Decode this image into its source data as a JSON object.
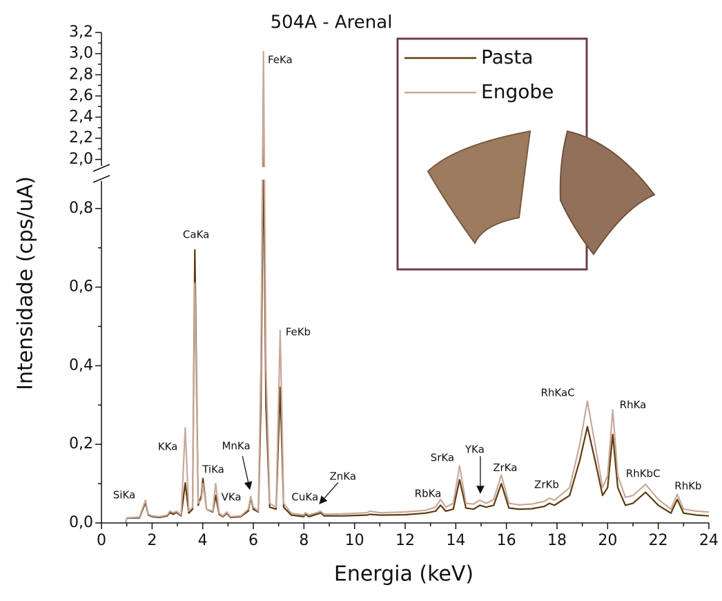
{
  "chart_data": {
    "type": "line",
    "title": "504A - Arenal",
    "x_label": "Energia (keV)",
    "y_label": "Intensidade (cps/uA)",
    "x": [
      0.95,
      1.0,
      1.5,
      1.74,
      1.85,
      2.0,
      2.3,
      2.6,
      2.7,
      2.85,
      2.95,
      3.15,
      3.31,
      3.45,
      3.6,
      3.69,
      3.82,
      3.95,
      4.01,
      4.15,
      4.4,
      4.51,
      4.65,
      4.8,
      4.95,
      5.1,
      5.5,
      5.8,
      5.9,
      6.0,
      6.2,
      6.3,
      6.4,
      6.5,
      6.65,
      6.9,
      7.06,
      7.2,
      7.5,
      8.0,
      8.05,
      8.2,
      8.6,
      8.65,
      8.8,
      9.5,
      10.5,
      10.6,
      11.0,
      12.0,
      12.8,
      13.2,
      13.4,
      13.6,
      13.9,
      14.15,
      14.4,
      14.7,
      14.95,
      15.2,
      15.5,
      15.8,
      16.1,
      16.5,
      17.0,
      17.5,
      17.7,
      17.9,
      18.5,
      18.9,
      19.2,
      19.5,
      19.8,
      20.0,
      20.2,
      20.4,
      20.7,
      21.0,
      21.5,
      22.0,
      22.5,
      22.75,
      23.0,
      23.5,
      24.0
    ],
    "series": [
      {
        "name": "Pasta",
        "color": "#5c3a0c",
        "values": [
          0.0,
          0.012,
          0.013,
          0.052,
          0.02,
          0.016,
          0.014,
          0.018,
          0.026,
          0.022,
          0.027,
          0.018,
          0.102,
          0.025,
          0.035,
          0.695,
          0.045,
          0.07,
          0.113,
          0.035,
          0.028,
          0.07,
          0.022,
          0.016,
          0.025,
          0.014,
          0.016,
          0.03,
          0.065,
          0.035,
          0.028,
          0.3,
          2.12,
          0.3,
          0.04,
          0.035,
          0.345,
          0.04,
          0.02,
          0.016,
          0.022,
          0.016,
          0.024,
          0.026,
          0.018,
          0.018,
          0.02,
          0.022,
          0.02,
          0.021,
          0.025,
          0.03,
          0.045,
          0.03,
          0.035,
          0.11,
          0.038,
          0.035,
          0.045,
          0.04,
          0.045,
          0.1,
          0.038,
          0.035,
          0.036,
          0.042,
          0.05,
          0.045,
          0.07,
          0.16,
          0.245,
          0.16,
          0.07,
          0.09,
          0.225,
          0.09,
          0.045,
          0.05,
          0.078,
          0.045,
          0.025,
          0.06,
          0.025,
          0.02,
          0.018
        ]
      },
      {
        "name": "Engobe",
        "color": "#c9a898",
        "values": [
          0.0,
          0.013,
          0.015,
          0.058,
          0.022,
          0.018,
          0.016,
          0.02,
          0.03,
          0.026,
          0.03,
          0.02,
          0.242,
          0.03,
          0.04,
          0.61,
          0.05,
          0.06,
          0.1,
          0.035,
          0.03,
          0.1,
          0.025,
          0.018,
          0.028,
          0.016,
          0.018,
          0.035,
          0.068,
          0.04,
          0.03,
          0.4,
          3.02,
          0.4,
          0.05,
          0.04,
          0.49,
          0.05,
          0.025,
          0.02,
          0.026,
          0.02,
          0.028,
          0.03,
          0.022,
          0.023,
          0.026,
          0.03,
          0.026,
          0.028,
          0.032,
          0.04,
          0.06,
          0.04,
          0.05,
          0.145,
          0.05,
          0.048,
          0.058,
          0.05,
          0.06,
          0.122,
          0.05,
          0.046,
          0.048,
          0.055,
          0.063,
          0.058,
          0.09,
          0.2,
          0.31,
          0.2,
          0.09,
          0.12,
          0.288,
          0.12,
          0.065,
          0.07,
          0.098,
          0.06,
          0.035,
          0.073,
          0.035,
          0.03,
          0.028
        ]
      }
    ],
    "xlim": [
      0,
      24
    ],
    "xticks": [
      0,
      2,
      4,
      6,
      8,
      10,
      12,
      14,
      16,
      18,
      20,
      22,
      24
    ],
    "ylim": [
      0,
      3.2
    ],
    "ybreak": [
      0.87,
      1.94
    ],
    "yticks": [
      {
        "value": 0,
        "label": "0,0"
      },
      {
        "value": 0.2,
        "label": "0,2"
      },
      {
        "value": 0.4,
        "label": "0,4"
      },
      {
        "value": 0.6,
        "label": "0,6"
      },
      {
        "value": 0.8,
        "label": "0,8"
      },
      {
        "value": 2.0,
        "label": "2,0"
      },
      {
        "value": 2.2,
        "label": "2,2"
      },
      {
        "value": 2.4,
        "label": "2,4"
      },
      {
        "value": 2.6,
        "label": "2,6"
      },
      {
        "value": 2.8,
        "label": "2,8"
      },
      {
        "value": 3.0,
        "label": "3,0"
      },
      {
        "value": 3.2,
        "label": "3,2"
      }
    ],
    "legend": "upper right",
    "annotations": [
      {
        "text": "SiKa",
        "x": 0.9,
        "y": 0.07
      },
      {
        "text": "KKa",
        "x": 2.62,
        "y": 0.193
      },
      {
        "text": "CaKa",
        "x": 3.74,
        "y": 0.733
      },
      {
        "text": "TiKa",
        "x": 4.42,
        "y": 0.135
      },
      {
        "text": "VKa",
        "x": 5.13,
        "y": 0.065
      },
      {
        "text": "MnKa",
        "x": 5.32,
        "y": 0.195,
        "arrow_from": [
          5.57,
          0.17
        ],
        "arrow_to": [
          5.86,
          0.086
        ]
      },
      {
        "text": "FeKa",
        "x": 7.06,
        "y": 2.94
      },
      {
        "text": "FeKb",
        "x": 7.77,
        "y": 0.485
      },
      {
        "text": "CuKa",
        "x": 8.04,
        "y": 0.065
      },
      {
        "text": "ZnKa",
        "x": 9.54,
        "y": 0.118,
        "arrow_from": [
          9.35,
          0.103
        ],
        "arrow_to": [
          8.62,
          0.049
        ]
      },
      {
        "text": "RbKa",
        "x": 12.9,
        "y": 0.074
      },
      {
        "text": "SrKa",
        "x": 13.47,
        "y": 0.165
      },
      {
        "text": "YKa",
        "x": 14.75,
        "y": 0.186,
        "arrow_from": [
          14.97,
          0.17
        ],
        "arrow_to": [
          14.97,
          0.076
        ]
      },
      {
        "text": "ZrKa",
        "x": 15.95,
        "y": 0.14
      },
      {
        "text": "ZrKb",
        "x": 17.59,
        "y": 0.097
      },
      {
        "text": "RhKaC",
        "x": 18.03,
        "y": 0.33
      },
      {
        "text": "RhKa",
        "x": 21.0,
        "y": 0.3
      },
      {
        "text": "RhKbC",
        "x": 21.4,
        "y": 0.125
      },
      {
        "text": "RhKb",
        "x": 23.18,
        "y": 0.093
      }
    ]
  }
}
